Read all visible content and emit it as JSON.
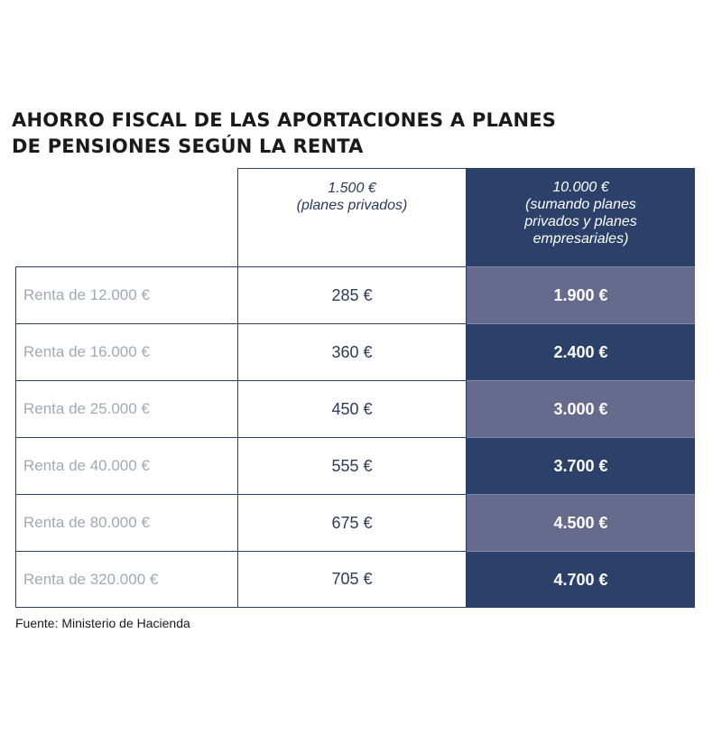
{
  "title": {
    "line1": "AHORRO FISCAL DE LAS APORTACIONES A PLANES",
    "line2": "DE PENSIONES SEGÚN LA RENTA"
  },
  "columns": {
    "private": [
      "1.500 €",
      "(planes privados)"
    ],
    "combined": [
      "10.000 €",
      "(sumando planes",
      "privados y planes",
      "empresariales)"
    ]
  },
  "rows": [
    {
      "label": "Renta de 12.000 €",
      "private": "285 €",
      "combined": "1.900 €"
    },
    {
      "label": "Renta de 16.000 €",
      "private": "360 €",
      "combined": "2.400 €"
    },
    {
      "label": "Renta de 25.000 €",
      "private": "450 €",
      "combined": "3.000 €"
    },
    {
      "label": "Renta de 40.000 €",
      "private": "555 €",
      "combined": "3.700 €"
    },
    {
      "label": "Renta de 80.000 €",
      "private": "675 €",
      "combined": "4.500 €"
    },
    {
      "label": "Renta de 320.000 €",
      "private": "705 €",
      "combined": "4.700 €"
    }
  ],
  "source": "Fuente: Ministerio de Hacienda",
  "colors": {
    "navy": "#2c416a",
    "slate": "#666b8e",
    "label_gray": "#a3a8b5"
  }
}
